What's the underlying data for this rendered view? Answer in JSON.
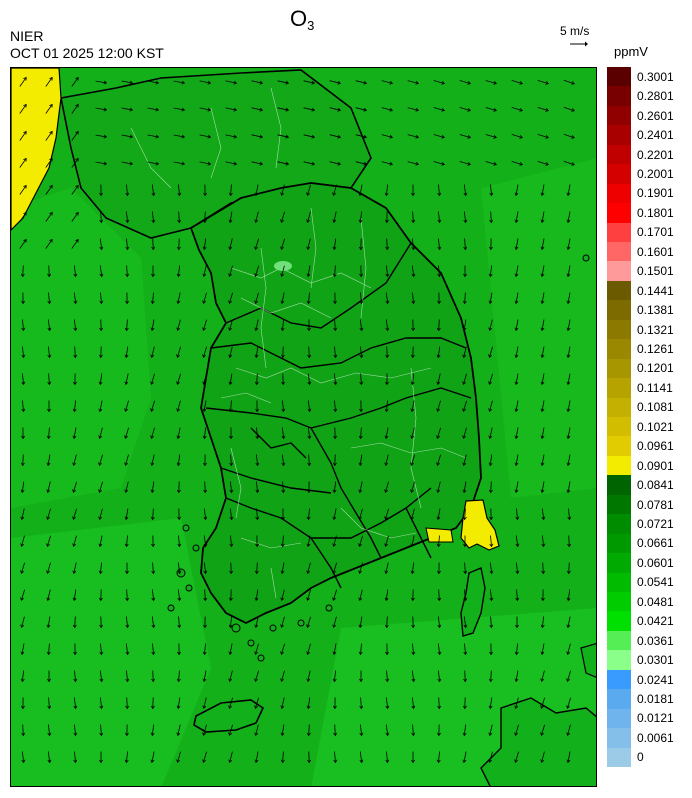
{
  "header": {
    "pollutant": "O",
    "pollutant_subscript": "3",
    "agency": "NIER",
    "timestamp": "OCT 01 2025 12:00 KST",
    "wind_reference": "5 m/s",
    "unit": "ppmV"
  },
  "legend": {
    "labels": [
      "0.3001",
      "0.2801",
      "0.2601",
      "0.2401",
      "0.2201",
      "0.2001",
      "0.1901",
      "0.1801",
      "0.1701",
      "0.1601",
      "0.1501",
      "0.1441",
      "0.1381",
      "0.1321",
      "0.1261",
      "0.1201",
      "0.1141",
      "0.1081",
      "0.1021",
      "0.0961",
      "0.0901",
      "0.0841",
      "0.0781",
      "0.0721",
      "0.0661",
      "0.0601",
      "0.0541",
      "0.0481",
      "0.0421",
      "0.0361",
      "0.0301",
      "0.0241",
      "0.0181",
      "0.0121",
      "0.0061",
      "0"
    ],
    "colors": [
      "#5a0000",
      "#780000",
      "#900000",
      "#a80000",
      "#c00000",
      "#d40000",
      "#ee0000",
      "#ff0000",
      "#ff4040",
      "#ff6666",
      "#ff9a9a",
      "#6b5a00",
      "#7d6b00",
      "#8c7a00",
      "#9a8800",
      "#a89600",
      "#b6a300",
      "#c4b000",
      "#d2bd00",
      "#e0cc00",
      "#f3ec00",
      "#006400",
      "#007800",
      "#008c00",
      "#009a00",
      "#00aa00",
      "#00bb00",
      "#00cc00",
      "#00e000",
      "#55ee55",
      "#8aff8a",
      "#3a9bff",
      "#5aaaf0",
      "#70b4ee",
      "#84bfea",
      "#9ccbe8"
    ]
  },
  "map": {
    "background_green": "#12b31a",
    "dark_green": "#0b8a14",
    "hotspot_color": "#f3ec00",
    "wind_direction": "southward at inland, northeastward at northwest corner"
  }
}
